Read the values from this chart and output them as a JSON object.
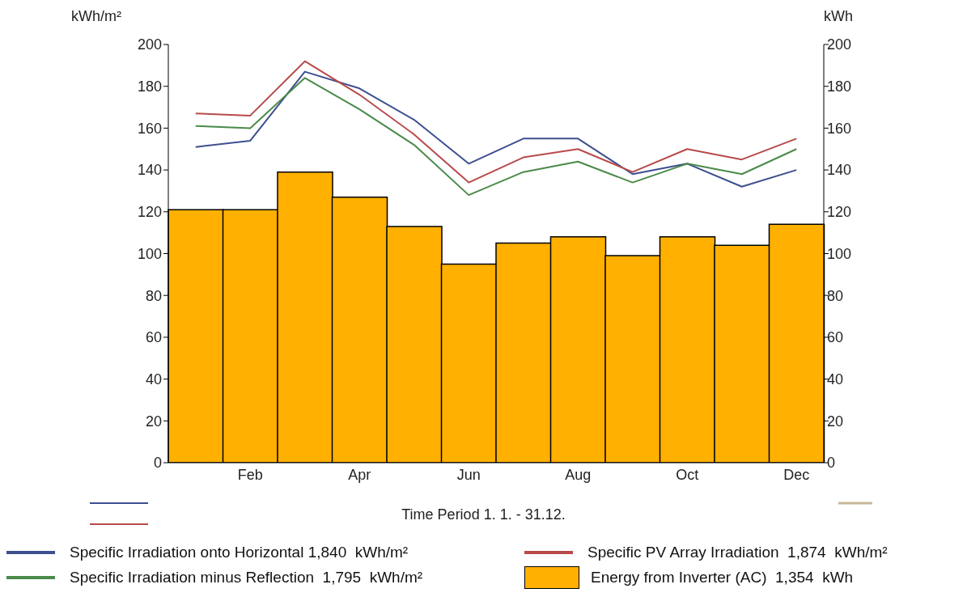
{
  "chart_data": {
    "type": "line",
    "categories": [
      null,
      "Feb",
      null,
      "Apr",
      null,
      "Jun",
      null,
      "Aug",
      null,
      "Oct",
      null,
      "Dec"
    ],
    "xlabel": "Time Period 1. 1. - 31.12.",
    "ylabel": "kWh/m²",
    "y2label": "kWh",
    "ylim": [
      0,
      200
    ],
    "yticks": [
      0,
      20,
      40,
      60,
      80,
      100,
      120,
      140,
      160,
      180,
      200
    ],
    "y2lim": [
      0,
      200
    ],
    "y2ticks": [
      0,
      20,
      40,
      60,
      80,
      100,
      120,
      140,
      160,
      180,
      200
    ],
    "legend": "bottom",
    "grid": false,
    "marker": "none",
    "line_style": "solid",
    "series": [
      {
        "name": "Specific Irradiation onto Horizontal 1,840  kWh/m²",
        "color": "#3d4f8f",
        "values": [
          151,
          154,
          187,
          179,
          164,
          143,
          155,
          155,
          138,
          143,
          132,
          140
        ]
      },
      {
        "name": "Specific PV Array Irradiation  1,874  kWh/m²",
        "color": "#b84a4a",
        "values": [
          167,
          166,
          192,
          176,
          157,
          134,
          146,
          150,
          139,
          150,
          145,
          155
        ]
      },
      {
        "name": "Specific Irradiation minus Reflection  1,795  kWh/m²",
        "color": "#4a8a4a",
        "values": [
          161,
          160,
          184,
          169,
          152,
          128,
          139,
          144,
          134,
          143,
          138,
          150
        ]
      },
      {
        "name": "Energy from Inverter (AC)  1,354  kWh",
        "type": "bar",
        "axis": "y2",
        "color": "#ffb000",
        "values": [
          121,
          121,
          139,
          127,
          113,
          95,
          105,
          108,
          99,
          108,
          104,
          114
        ]
      }
    ]
  }
}
